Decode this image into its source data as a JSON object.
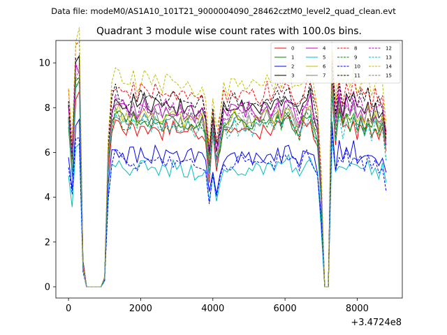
{
  "chart_data": {
    "type": "line",
    "suptitle": "Data file: modeM0/AS1A10_101T21_9000004090_28462cztM0_level2_quad_clean.evt",
    "title": "Quadrant 3 module wise count rates with 100.0s bins.",
    "xlabel": "",
    "ylabel": "",
    "x_offset_label": "+3.4724e8",
    "xlim": [
      -350,
      9250
    ],
    "ylim": [
      -0.5,
      11.0
    ],
    "xticks": [
      0,
      2000,
      4000,
      6000,
      8000
    ],
    "yticks": [
      0,
      2,
      4,
      6,
      8,
      10
    ],
    "legend_position": "top-right",
    "x": [
      0,
      100,
      200,
      300,
      400,
      500,
      600,
      700,
      800,
      900,
      1000,
      1100,
      1200,
      1300,
      1400,
      1500,
      1600,
      1700,
      1800,
      1900,
      2000,
      2100,
      2200,
      2300,
      2400,
      2500,
      2600,
      2700,
      2800,
      2900,
      3000,
      3100,
      3200,
      3300,
      3400,
      3500,
      3600,
      3700,
      3800,
      3900,
      4000,
      4100,
      4200,
      4300,
      4400,
      4500,
      4600,
      4700,
      4800,
      4900,
      5000,
      5100,
      5200,
      5300,
      5400,
      5500,
      5600,
      5700,
      5800,
      5900,
      6000,
      6100,
      6200,
      6300,
      6400,
      6500,
      6600,
      6700,
      6800,
      6900,
      7000,
      7100,
      7200,
      7300,
      7400,
      7500,
      7600,
      7700,
      7800,
      7900,
      8000,
      8100,
      8200,
      8300,
      8400,
      8500,
      8600,
      8700,
      8800
    ],
    "base_profile": [
      1.0,
      0.68,
      1.22,
      1.24,
      0.12,
      0,
      0,
      0,
      0,
      0,
      0.05,
      0.75,
      0.98,
      1.05,
      1.03,
      1.01,
      0.99,
      1.0,
      1.03,
      0.98,
      1.01,
      1.03,
      1.0,
      0.98,
      1.02,
      1.0,
      0.97,
      1.01,
      0.99,
      1.01,
      0.98,
      1.0,
      0.97,
      0.99,
      1.0,
      0.96,
      0.97,
      0.98,
      0.92,
      0.7,
      0.92,
      0.74,
      0.86,
      0.98,
      0.95,
      0.99,
      1.01,
      0.98,
      1.0,
      0.97,
      1.0,
      0.98,
      0.99,
      0.96,
      1.0,
      1.02,
      0.98,
      0.99,
      1.01,
      0.98,
      1.02,
      1.05,
      1.0,
      0.97,
      0.94,
      1.0,
      1.03,
      1.06,
      0.96,
      0.9,
      0.55,
      0,
      0,
      1.2,
      0.92,
      1.08,
      0.96,
      1.04,
      0.98,
      1.05,
      0.97,
      1.02,
      0.96,
      1.03,
      0.94,
      1.0,
      0.97,
      0.98,
      0.82
    ],
    "series": [
      {
        "name": "0",
        "level": 7.1,
        "color": "#ff0000",
        "dash": "solid"
      },
      {
        "name": "1",
        "level": 7.4,
        "color": "#008000",
        "dash": "solid"
      },
      {
        "name": "2",
        "level": 5.9,
        "color": "#0000ff",
        "dash": "solid"
      },
      {
        "name": "3",
        "level": 8.1,
        "color": "#000000",
        "dash": "solid"
      },
      {
        "name": "4",
        "level": 7.9,
        "color": "#bf00bf",
        "dash": "solid"
      },
      {
        "name": "5",
        "level": 5.3,
        "color": "#00bfbf",
        "dash": "solid"
      },
      {
        "name": "6",
        "level": 7.6,
        "color": "#bfbf00",
        "dash": "solid"
      },
      {
        "name": "7",
        "level": 7.5,
        "color": "#7f7f7f",
        "dash": "solid"
      },
      {
        "name": "8",
        "level": 8.7,
        "color": "#ff0000",
        "dash": "dashed"
      },
      {
        "name": "9",
        "level": 7.3,
        "color": "#008000",
        "dash": "dashed"
      },
      {
        "name": "10",
        "level": 5.6,
        "color": "#0000ff",
        "dash": "dashed"
      },
      {
        "name": "11",
        "level": 8.4,
        "color": "#000000",
        "dash": "dashed"
      },
      {
        "name": "12",
        "level": 8.0,
        "color": "#bf00bf",
        "dash": "dashed"
      },
      {
        "name": "13",
        "level": 7.2,
        "color": "#00bfbf",
        "dash": "dashed"
      },
      {
        "name": "14",
        "level": 9.2,
        "color": "#bfbf00",
        "dash": "dashed"
      },
      {
        "name": "15",
        "level": 7.7,
        "color": "#7f7f7f",
        "dash": "dashed"
      }
    ]
  }
}
